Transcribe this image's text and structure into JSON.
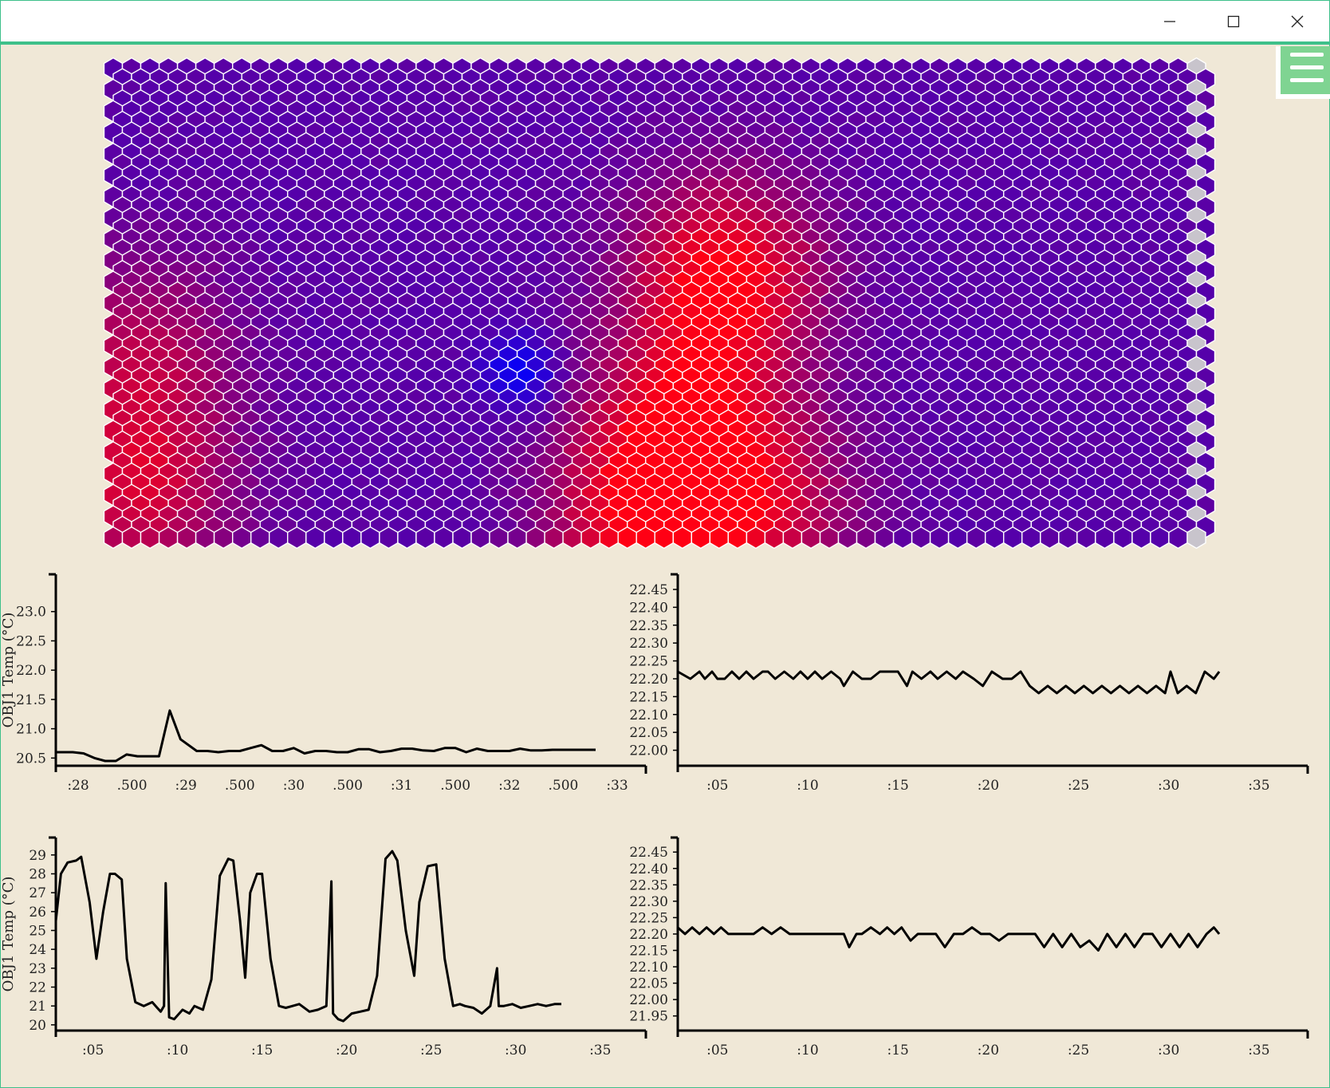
{
  "window": {
    "controls": [
      "minimize",
      "maximize",
      "close"
    ],
    "accent_color": "#3ec08a"
  },
  "menu": {
    "icon": "hamburger-menu-icon",
    "color": "#7fd492"
  },
  "heatmap": {
    "colors": {
      "cool": "#0000ff",
      "mid": "#5500aa",
      "hot": "#ff0000",
      "inactive": "#c8c4cc"
    },
    "hotspots": [
      {
        "col": 0.56,
        "row": 0.45,
        "strength": 1.0
      },
      {
        "col": 0.52,
        "row": 0.78,
        "strength": 0.85
      },
      {
        "col": 0.48,
        "row": 1.0,
        "strength": 0.75
      },
      {
        "col": 0.6,
        "row": 0.95,
        "strength": 0.6
      },
      {
        "col": 0.02,
        "row": 0.9,
        "strength": 0.7
      },
      {
        "col": 0.02,
        "row": 0.6,
        "strength": 0.5
      }
    ],
    "cold_spot": {
      "col": 0.37,
      "row": 0.65
    }
  },
  "chart_data": [
    {
      "type": "line",
      "ylabel": "OBJ1 Temp (°C)",
      "xticks": [
        ":28",
        ".500",
        ":29",
        ".500",
        ":30",
        ".500",
        ":31",
        ".500",
        ":32",
        ".500",
        ":33"
      ],
      "yticks": [
        "20.5",
        "21.0",
        "21.5",
        "22.0",
        "22.5",
        "23.0"
      ],
      "xlim": [
        0,
        10.6
      ],
      "ylim": [
        20.45,
        23.5
      ],
      "x": [
        -0.4,
        -0.1,
        0.1,
        0.3,
        0.5,
        0.7,
        0.9,
        1.1,
        1.3,
        1.5,
        1.7,
        1.9,
        2.2,
        2.4,
        2.6,
        2.8,
        3.0,
        3.2,
        3.4,
        3.6,
        3.8,
        4.0,
        4.2,
        4.4,
        4.6,
        4.8,
        5.0,
        5.2,
        5.4,
        5.6,
        5.8,
        6.0,
        6.2,
        6.4,
        6.6,
        6.8,
        7.0,
        7.2,
        7.4,
        7.6,
        7.8,
        8.0,
        8.2,
        8.4,
        8.6,
        8.8,
        9.0,
        9.2,
        9.4,
        9.6
      ],
      "y": [
        20.6,
        20.6,
        20.58,
        20.5,
        20.45,
        20.45,
        20.56,
        20.53,
        20.53,
        20.53,
        21.31,
        20.82,
        20.62,
        20.62,
        20.6,
        20.62,
        20.62,
        20.67,
        20.72,
        20.62,
        20.62,
        20.67,
        20.58,
        20.62,
        20.62,
        20.6,
        20.6,
        20.65,
        20.65,
        20.6,
        20.62,
        20.66,
        20.66,
        20.63,
        20.62,
        20.67,
        20.67,
        20.6,
        20.66,
        20.62,
        20.62,
        20.62,
        20.66,
        20.63,
        20.63,
        20.64,
        20.64,
        20.64,
        20.64,
        20.64
      ]
    },
    {
      "type": "line",
      "xticks": [
        ":05",
        ":10",
        ":15",
        ":20",
        ":25",
        ":30",
        ":35"
      ],
      "yticks": [
        "22.00",
        "22.05",
        "22.10",
        "22.15",
        "22.20",
        "22.25",
        "22.30",
        "22.35",
        "22.40",
        "22.45"
      ],
      "xlim": [
        2.8,
        37.7
      ],
      "ylim": [
        21.97,
        22.47
      ],
      "x": [
        2.8,
        3.5,
        4.0,
        4.3,
        4.7,
        5.0,
        5.4,
        5.8,
        6.2,
        6.6,
        7.0,
        7.5,
        7.8,
        8.2,
        8.7,
        9.2,
        9.6,
        10.0,
        10.4,
        10.8,
        11.3,
        11.8,
        12.0,
        12.5,
        13.0,
        13.5,
        14.0,
        14.5,
        15.0,
        15.5,
        15.8,
        16.3,
        16.8,
        17.2,
        17.7,
        18.2,
        18.6,
        19.2,
        19.7,
        20.2,
        20.8,
        21.3,
        21.8,
        22.3,
        22.8,
        23.3,
        23.8,
        24.3,
        24.8,
        25.3,
        25.8,
        26.3,
        26.8,
        27.3,
        27.8,
        28.3,
        28.8,
        29.3,
        29.8,
        30.1,
        30.5,
        31.0,
        31.5,
        32.0,
        32.5,
        32.8
      ],
      "y": [
        22.22,
        22.2,
        22.22,
        22.2,
        22.22,
        22.2,
        22.2,
        22.22,
        22.2,
        22.22,
        22.2,
        22.22,
        22.22,
        22.2,
        22.22,
        22.2,
        22.22,
        22.2,
        22.22,
        22.2,
        22.22,
        22.2,
        22.18,
        22.22,
        22.2,
        22.2,
        22.22,
        22.22,
        22.22,
        22.18,
        22.22,
        22.2,
        22.22,
        22.2,
        22.22,
        22.2,
        22.22,
        22.2,
        22.18,
        22.22,
        22.2,
        22.2,
        22.22,
        22.18,
        22.16,
        22.18,
        22.16,
        22.18,
        22.16,
        22.18,
        22.16,
        22.18,
        22.16,
        22.18,
        22.16,
        22.18,
        22.16,
        22.18,
        22.16,
        22.22,
        22.16,
        22.18,
        22.16,
        22.22,
        22.2,
        22.22
      ]
    },
    {
      "type": "line",
      "ylabel": "OBJ1 Temp (°C)",
      "xticks": [
        ":05",
        ":10",
        ":15",
        ":20",
        ":25",
        ":30",
        ":35"
      ],
      "yticks": [
        "20",
        "21",
        "22",
        "23",
        "24",
        "25",
        "26",
        "27",
        "28",
        "29"
      ],
      "xlim": [
        2.8,
        37.7
      ],
      "ylim": [
        19.95,
        29.5
      ],
      "x": [
        2.8,
        3.1,
        3.5,
        4.0,
        4.3,
        4.8,
        5.2,
        5.6,
        6.0,
        6.3,
        6.7,
        7.0,
        7.5,
        8.0,
        8.5,
        8.8,
        9.0,
        9.2,
        9.3,
        9.5,
        9.8,
        10.3,
        10.7,
        11.0,
        11.5,
        12.0,
        12.5,
        13.0,
        13.3,
        13.7,
        14.0,
        14.3,
        14.7,
        15.0,
        15.5,
        16.0,
        16.4,
        16.8,
        17.2,
        17.8,
        18.3,
        18.8,
        19.1,
        19.2,
        19.5,
        19.8,
        20.3,
        20.8,
        21.3,
        21.8,
        22.3,
        22.7,
        23.0,
        23.5,
        24.0,
        24.3,
        24.8,
        25.3,
        25.8,
        26.3,
        26.7,
        27.0,
        27.5,
        28.0,
        28.5,
        28.9,
        29.0,
        29.3,
        29.8,
        30.3,
        30.8,
        31.3,
        31.8,
        32.3,
        32.7
      ],
      "y": [
        25.5,
        28,
        28.6,
        28.7,
        28.9,
        26.5,
        23.5,
        26,
        28,
        28,
        27.7,
        23.5,
        21.2,
        21,
        21.2,
        20.9,
        20.7,
        21.0,
        27.5,
        20.4,
        20.3,
        20.8,
        20.6,
        21,
        20.8,
        22.4,
        27.9,
        28.8,
        28.7,
        25.5,
        22.5,
        27.0,
        28.0,
        28.0,
        23.5,
        21.0,
        20.9,
        21.0,
        21.1,
        20.7,
        20.8,
        21.0,
        27.6,
        20.6,
        20.3,
        20.2,
        20.6,
        20.7,
        20.8,
        22.6,
        28.8,
        29.2,
        28.7,
        25.0,
        22.6,
        26.5,
        28.4,
        28.5,
        23.5,
        21.0,
        21.1,
        21.0,
        20.9,
        20.6,
        21.0,
        23.0,
        21.0,
        21.0,
        21.1,
        20.9,
        21.0,
        21.1,
        21.0,
        21.1,
        21.1
      ]
    },
    {
      "type": "line",
      "xticks": [
        ":05",
        ":10",
        ":15",
        ":20",
        ":25",
        ":30",
        ":35"
      ],
      "yticks": [
        "21.95",
        "22.00",
        "22.05",
        "22.10",
        "22.15",
        "22.20",
        "22.25",
        "22.30",
        "22.35",
        "22.40",
        "22.45"
      ],
      "xlim": [
        2.8,
        37.7
      ],
      "ylim": [
        21.92,
        22.47
      ],
      "x": [
        2.8,
        3.2,
        3.6,
        4.0,
        4.4,
        4.8,
        5.2,
        5.6,
        6.0,
        6.5,
        7.0,
        7.5,
        8.0,
        8.5,
        9.0,
        9.5,
        10.0,
        10.5,
        11.0,
        11.5,
        12.0,
        12.3,
        12.7,
        13.0,
        13.5,
        14.0,
        14.4,
        14.8,
        15.2,
        15.7,
        16.1,
        16.6,
        17.1,
        17.6,
        18.1,
        18.6,
        19.1,
        19.6,
        20.1,
        20.6,
        21.1,
        21.6,
        22.1,
        22.6,
        23.1,
        23.6,
        24.1,
        24.6,
        25.1,
        25.6,
        26.1,
        26.6,
        27.1,
        27.6,
        28.1,
        28.6,
        29.1,
        29.6,
        30.1,
        30.6,
        31.1,
        31.6,
        32.1,
        32.5,
        32.8
      ],
      "y": [
        22.22,
        22.2,
        22.22,
        22.2,
        22.22,
        22.2,
        22.22,
        22.2,
        22.2,
        22.2,
        22.2,
        22.22,
        22.2,
        22.22,
        22.2,
        22.2,
        22.2,
        22.2,
        22.2,
        22.2,
        22.2,
        22.16,
        22.2,
        22.2,
        22.22,
        22.2,
        22.22,
        22.2,
        22.22,
        22.18,
        22.2,
        22.2,
        22.2,
        22.16,
        22.2,
        22.2,
        22.22,
        22.2,
        22.2,
        22.18,
        22.2,
        22.2,
        22.2,
        22.2,
        22.16,
        22.2,
        22.16,
        22.2,
        22.16,
        22.18,
        22.15,
        22.2,
        22.16,
        22.2,
        22.16,
        22.2,
        22.2,
        22.16,
        22.2,
        22.16,
        22.2,
        22.16,
        22.2,
        22.22,
        22.2
      ]
    }
  ]
}
